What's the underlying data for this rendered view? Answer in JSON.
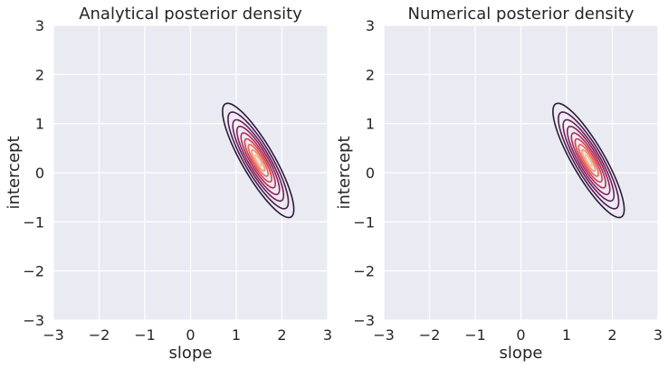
{
  "chart_data": [
    {
      "type": "contour",
      "title": "Analytical posterior density",
      "xlabel": "slope",
      "ylabel": "intercept",
      "xlim": [
        -3,
        3
      ],
      "ylim": [
        -3,
        3
      ],
      "xticks": [
        "−3",
        "−2",
        "−1",
        "0",
        "1",
        "2",
        "3"
      ],
      "yticks": [
        "−3",
        "−2",
        "−1",
        "0",
        "1",
        "2",
        "3"
      ],
      "grid": true,
      "mean": [
        1.48,
        0.25
      ],
      "covariance": [
        [
          0.09,
          -0.115
        ],
        [
          -0.115,
          0.2
        ]
      ],
      "levels": [
        {
          "mahalanobis": 2.6,
          "color": "#2d1a3a"
        },
        {
          "mahalanobis": 2.2,
          "color": "#4d1d4e"
        },
        {
          "mahalanobis": 1.85,
          "color": "#6d1f58"
        },
        {
          "mahalanobis": 1.55,
          "color": "#8e1f5b"
        },
        {
          "mahalanobis": 1.25,
          "color": "#b22a5a"
        },
        {
          "mahalanobis": 0.98,
          "color": "#d43f53"
        },
        {
          "mahalanobis": 0.72,
          "color": "#e8664c"
        },
        {
          "mahalanobis": 0.48,
          "color": "#f1946c"
        },
        {
          "mahalanobis": 0.25,
          "color": "#f5bfa1"
        }
      ]
    },
    {
      "type": "contour",
      "title": "Numerical posterior density",
      "xlabel": "slope",
      "ylabel": "intercept",
      "xlim": [
        -3,
        3
      ],
      "ylim": [
        -3,
        3
      ],
      "xticks": [
        "−3",
        "−2",
        "−1",
        "0",
        "1",
        "2",
        "3"
      ],
      "yticks": [
        "−3",
        "−2",
        "−1",
        "0",
        "1",
        "2",
        "3"
      ],
      "grid": true,
      "mean": [
        1.48,
        0.25
      ],
      "covariance": [
        [
          0.09,
          -0.115
        ],
        [
          -0.115,
          0.2
        ]
      ],
      "levels": [
        {
          "mahalanobis": 2.6,
          "color": "#2d1a3a"
        },
        {
          "mahalanobis": 2.2,
          "color": "#4d1d4e"
        },
        {
          "mahalanobis": 1.85,
          "color": "#6d1f58"
        },
        {
          "mahalanobis": 1.55,
          "color": "#8e1f5b"
        },
        {
          "mahalanobis": 1.25,
          "color": "#b22a5a"
        },
        {
          "mahalanobis": 0.98,
          "color": "#d43f53"
        },
        {
          "mahalanobis": 0.72,
          "color": "#e8664c"
        },
        {
          "mahalanobis": 0.48,
          "color": "#f1946c"
        },
        {
          "mahalanobis": 0.25,
          "color": "#f5bfa1"
        }
      ]
    }
  ]
}
